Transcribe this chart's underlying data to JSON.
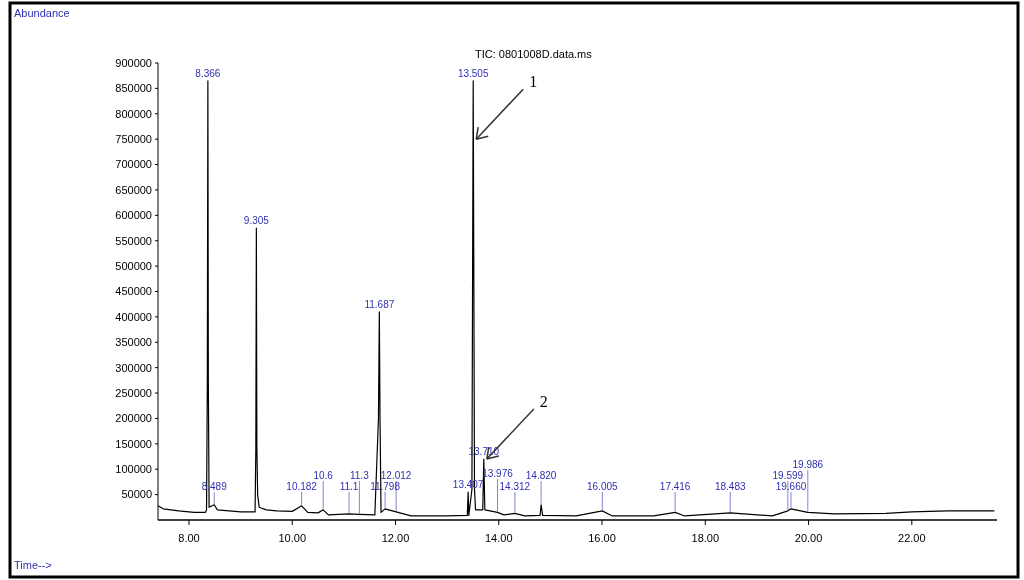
{
  "chart_data": {
    "type": "line",
    "title": "TIC: 0801008D.data.ms",
    "xlim": [
      7.4,
      23.65
    ],
    "xticks": [
      {
        "value": 8,
        "label": "8.00"
      },
      {
        "value": 10,
        "label": "10.00"
      },
      {
        "value": 12,
        "label": "12.00"
      },
      {
        "value": 14,
        "label": "14.00"
      },
      {
        "value": 16,
        "label": "16.00"
      },
      {
        "value": 18,
        "label": "18.00"
      },
      {
        "value": 20,
        "label": "20.00"
      },
      {
        "value": 22,
        "label": "22.00"
      }
    ],
    "ylim": [
      0,
      900000
    ],
    "yticks": [
      50000,
      100000,
      150000,
      200000,
      250000,
      300000,
      350000,
      400000,
      450000,
      500000,
      550000,
      600000,
      650000,
      700000,
      750000,
      800000,
      850000,
      900000
    ],
    "grid": false,
    "marker": "none",
    "line_style": "solid",
    "series": [
      {
        "color": "#000000",
        "x": [
          7.4,
          7.5,
          7.8,
          8.1,
          8.32,
          8.34,
          8.355,
          8.366,
          8.375,
          8.39,
          8.489,
          8.55,
          9.0,
          9.28,
          9.295,
          9.305,
          9.315,
          9.33,
          9.36,
          9.5,
          9.7,
          10.0,
          10.182,
          10.3,
          10.5,
          10.6,
          10.7,
          11.1,
          11.3,
          11.6,
          11.67,
          11.687,
          11.7,
          11.72,
          11.798,
          12.012,
          12.3,
          13.0,
          13.39,
          13.407,
          13.42,
          13.48,
          13.505,
          13.53,
          13.55,
          13.69,
          13.71,
          13.73,
          13.976,
          14.1,
          14.312,
          14.5,
          14.8,
          14.82,
          14.85,
          15.5,
          16.005,
          16.2,
          17.0,
          17.416,
          17.6,
          18.483,
          19.3,
          19.599,
          19.66,
          19.986,
          20.5,
          21.5,
          22.0,
          22.7,
          23.6
        ],
        "values": [
          28000,
          22000,
          18000,
          15000,
          15000,
          20000,
          260000,
          865000,
          270000,
          25000,
          30000,
          20000,
          16000,
          16000,
          140000,
          575000,
          140000,
          50000,
          25000,
          20000,
          18000,
          17000,
          28000,
          15000,
          14000,
          20000,
          10000,
          12000,
          11000,
          10000,
          200000,
          410000,
          200000,
          15000,
          22000,
          16000,
          8000,
          8000,
          9000,
          55000,
          9000,
          60000,
          865000,
          60000,
          20000,
          20000,
          120000,
          20000,
          15000,
          10000,
          13000,
          8000,
          9000,
          30000,
          9000,
          8000,
          18000,
          8000,
          8000,
          15000,
          8000,
          14000,
          8000,
          18000,
          22000,
          15000,
          12000,
          13000,
          16000,
          18000,
          18000
        ]
      }
    ],
    "annotations": [
      {
        "text": "8.366",
        "x": 8.366,
        "y": 865000
      },
      {
        "text": "8.489",
        "x": 8.489,
        "y": 30000
      },
      {
        "text": "9.305",
        "x": 9.305,
        "y": 575000
      },
      {
        "text": "10.182",
        "x": 10.182,
        "y": 28000
      },
      {
        "text": "10.6",
        "x": 10.6,
        "y": 20000
      },
      {
        "text": "11.1",
        "x": 11.1,
        "y": 12000
      },
      {
        "text": "11.3",
        "x": 11.3,
        "y": 11000
      },
      {
        "text": "11.687",
        "x": 11.687,
        "y": 410000
      },
      {
        "text": "11.798",
        "x": 11.798,
        "y": 22000
      },
      {
        "text": "12.012",
        "x": 12.012,
        "y": 16000
      },
      {
        "text": "13.407",
        "x": 13.407,
        "y": 55000
      },
      {
        "text": "13.505",
        "x": 13.505,
        "y": 865000
      },
      {
        "text": "13.710",
        "x": 13.71,
        "y": 120000
      },
      {
        "text": "13.976",
        "x": 13.976,
        "y": 15000
      },
      {
        "text": "14.312",
        "x": 14.312,
        "y": 13000
      },
      {
        "text": "14.820",
        "x": 14.82,
        "y": 30000
      },
      {
        "text": "16.005",
        "x": 16.005,
        "y": 18000
      },
      {
        "text": "17.416",
        "x": 17.416,
        "y": 15000
      },
      {
        "text": "18.483",
        "x": 18.483,
        "y": 14000
      },
      {
        "text": "19.660",
        "x": 19.66,
        "y": 22000
      },
      {
        "text": "19.599",
        "x": 19.599,
        "y": 18000
      },
      {
        "text": "19.986",
        "x": 19.986,
        "y": 15000
      },
      {
        "text": "1",
        "x": 13.505,
        "y": 750000
      },
      {
        "text": "2",
        "x": 13.71,
        "y": 120000
      },
      "Abundance",
      "Time-->"
    ]
  }
}
